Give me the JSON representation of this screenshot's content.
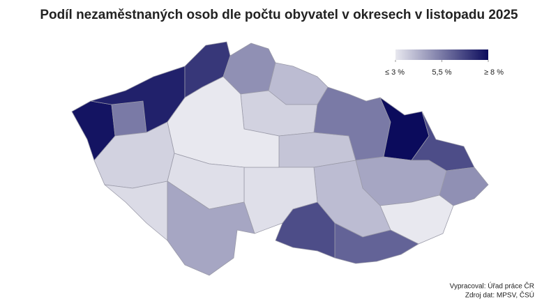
{
  "chart_data": {
    "type": "choropleth",
    "title": "Podíl nezaměstnaných osob dle počtu obyvatel v okresech v listopadu 2025",
    "values": [
      7.8,
      5.5,
      7.5,
      7.0,
      5.0,
      4.0,
      3.5,
      3.8,
      5.5,
      8.5,
      6.5,
      5.0,
      4.5,
      3.0,
      4.0,
      6.0,
      6.5,
      3.2,
      2.8,
      3.5,
      3.2,
      3.3,
      4.5
    ],
    "color_low": "#e8e8ef",
    "color_high": "#0b0b5c",
    "color_range": [
      3,
      8
    ],
    "legend_ticks": [
      {
        "value": 3,
        "label": "≤ 3 %"
      },
      {
        "value": 5.5,
        "label": "5,5 %"
      },
      {
        "value": 8,
        "label": "≥ 8 %"
      }
    ],
    "credits": [
      "Vypracoval: Úřad práce ČR",
      "Zdroj dat: MPSV, ČSÚ"
    ]
  }
}
